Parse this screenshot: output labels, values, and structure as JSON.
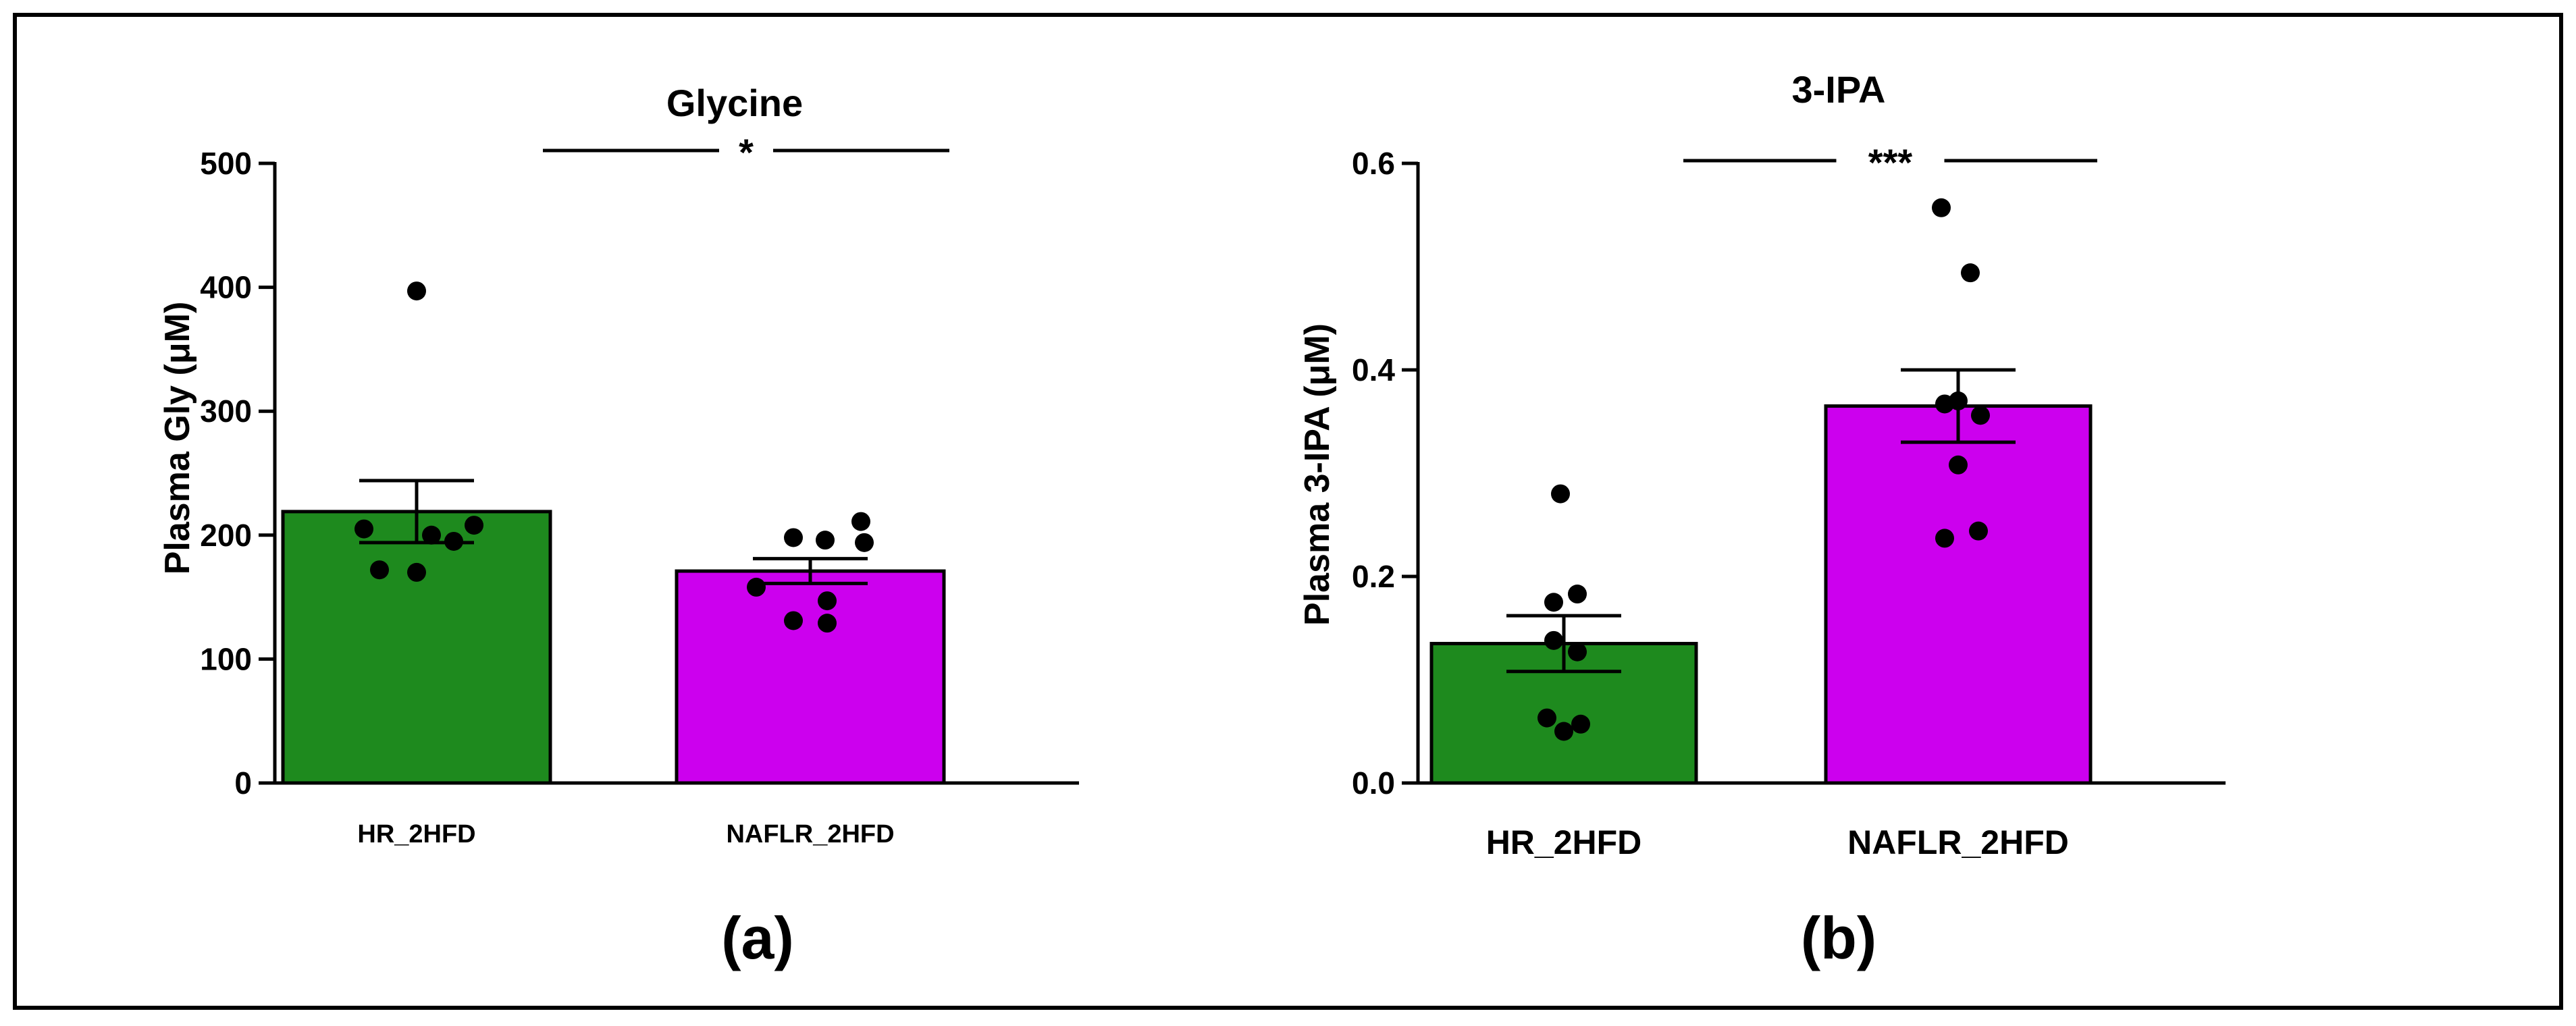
{
  "chart_data": [
    {
      "type": "bar",
      "panel_label": "(a)",
      "title": "Glycine",
      "xlabel": "",
      "ylabel": "Plasma Gly (μM)",
      "categories": [
        "HR_2HFD",
        "NAFLR_2HFD"
      ],
      "values": [
        219,
        171
      ],
      "error": [
        25,
        10
      ],
      "ylim": [
        0,
        500
      ],
      "yticks": [
        0,
        100,
        200,
        300,
        400,
        500
      ],
      "ytick_labels": [
        "0",
        "100",
        "200",
        "300",
        "400",
        "500"
      ],
      "points": [
        [
          397,
          208,
          205,
          200,
          195,
          172,
          170
        ],
        [
          211,
          198,
          196,
          194,
          158,
          147,
          131,
          129
        ]
      ],
      "bar_colors": [
        "#1e8a1e",
        "#cc00ee"
      ],
      "significance": "*"
    },
    {
      "type": "bar",
      "panel_label": "(b)",
      "title": "3-IPA",
      "xlabel": "",
      "ylabel": "Plasma 3-IPA (μM)",
      "categories": [
        "HR_2HFD",
        "NAFLR_2HFD"
      ],
      "values": [
        0.135,
        0.365
      ],
      "error": [
        0.027,
        0.035
      ],
      "ylim": [
        0,
        0.6
      ],
      "yticks": [
        0,
        0.2,
        0.4,
        0.6
      ],
      "ytick_labels": [
        "0.0",
        "0.2",
        "0.4",
        "0.6"
      ],
      "points": [
        [
          0.28,
          0.183,
          0.175,
          0.138,
          0.127,
          0.063,
          0.057,
          0.05
        ],
        [
          0.557,
          0.494,
          0.37,
          0.367,
          0.356,
          0.308,
          0.244,
          0.237
        ]
      ],
      "bar_colors": [
        "#1e8a1e",
        "#cc00ee"
      ],
      "significance": "***"
    }
  ]
}
